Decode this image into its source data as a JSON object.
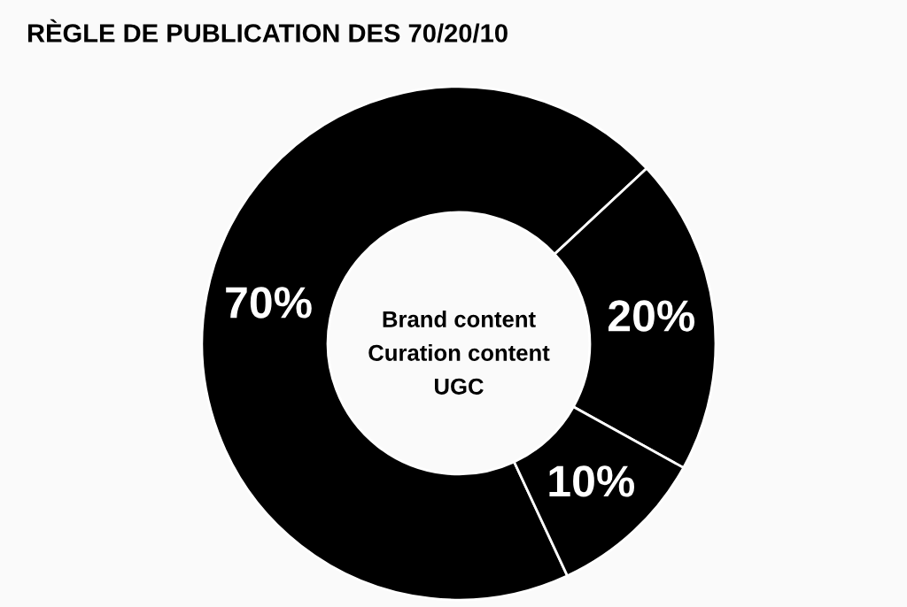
{
  "chart_data": {
    "type": "donut",
    "title": "RÈGLE DE PUBLICATION DES 70/20/10",
    "categories": [
      null,
      null,
      null
    ],
    "values": [
      70,
      20,
      10
    ],
    "colors": [
      "#000000",
      "#000000",
      "#000000"
    ],
    "value_labels": [
      "70%",
      "20%",
      "10%"
    ],
    "annotations": [
      "Brand content",
      "Curation content",
      "UGC"
    ]
  }
}
